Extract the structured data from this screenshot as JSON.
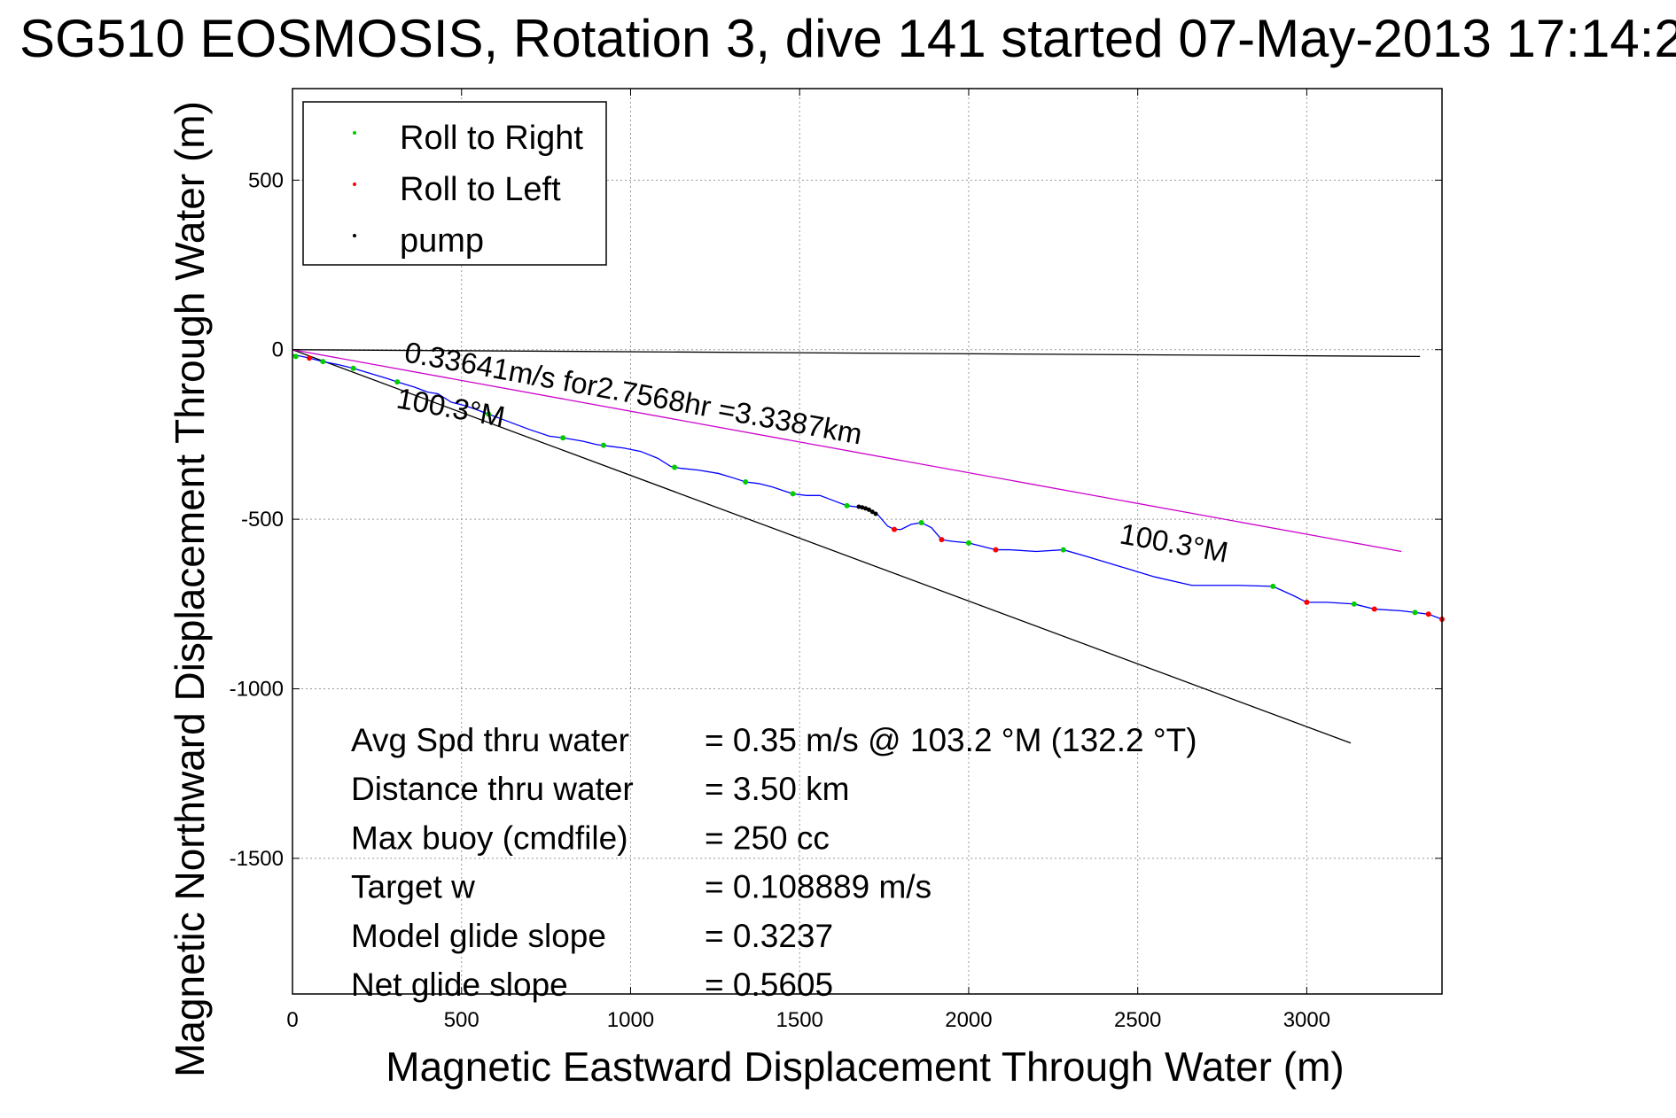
{
  "chart_data": {
    "type": "scatter",
    "title": "SG510 EOSMOSIS, Rotation 3, dive 141 started 07-May-2013 17:14:2",
    "xlabel": "Magnetic Eastward Displacement Through Water (m)",
    "ylabel": "Magnetic Northward Displacement Through Water (m)",
    "xlim": [
      0,
      3400
    ],
    "ylim": [
      -1900,
      770
    ],
    "xticks": [
      0,
      500,
      1000,
      1500,
      2000,
      2500,
      3000
    ],
    "yticks": [
      500,
      0,
      -500,
      -1000,
      -1500
    ],
    "grid": true,
    "legend": {
      "position": "top-left",
      "entries": [
        {
          "label": "Roll to Right",
          "color": "#00cc00"
        },
        {
          "label": "Roll to Left",
          "color": "#ff0000"
        },
        {
          "label": "pump",
          "color": "#000000"
        }
      ]
    },
    "track": {
      "color": "#0000ff",
      "points": [
        [
          0,
          -15
        ],
        [
          20,
          -18
        ],
        [
          50,
          -25
        ],
        [
          90,
          -35
        ],
        [
          140,
          -45
        ],
        [
          180,
          -55
        ],
        [
          230,
          -70
        ],
        [
          280,
          -85
        ],
        [
          310,
          -95
        ],
        [
          360,
          -110
        ],
        [
          400,
          -125
        ],
        [
          430,
          -130
        ],
        [
          470,
          -155
        ],
        [
          510,
          -165
        ],
        [
          540,
          -175
        ],
        [
          580,
          -190
        ],
        [
          620,
          -205
        ],
        [
          660,
          -220
        ],
        [
          700,
          -235
        ],
        [
          760,
          -255
        ],
        [
          800,
          -260
        ],
        [
          830,
          -265
        ],
        [
          860,
          -270
        ],
        [
          900,
          -280
        ],
        [
          940,
          -285
        ],
        [
          980,
          -290
        ],
        [
          1030,
          -300
        ],
        [
          1080,
          -320
        ],
        [
          1120,
          -345
        ],
        [
          1150,
          -350
        ],
        [
          1200,
          -355
        ],
        [
          1260,
          -365
        ],
        [
          1310,
          -380
        ],
        [
          1340,
          -390
        ],
        [
          1380,
          -395
        ],
        [
          1420,
          -405
        ],
        [
          1480,
          -425
        ],
        [
          1520,
          -430
        ],
        [
          1560,
          -430
        ],
        [
          1600,
          -445
        ],
        [
          1640,
          -460
        ],
        [
          1680,
          -465
        ],
        [
          1700,
          -470
        ],
        [
          1730,
          -485
        ],
        [
          1760,
          -520
        ],
        [
          1780,
          -530
        ],
        [
          1800,
          -530
        ],
        [
          1830,
          -515
        ],
        [
          1860,
          -510
        ],
        [
          1890,
          -525
        ],
        [
          1920,
          -560
        ],
        [
          1950,
          -565
        ],
        [
          2000,
          -570
        ],
        [
          2040,
          -580
        ],
        [
          2080,
          -590
        ],
        [
          2120,
          -590
        ],
        [
          2200,
          -595
        ],
        [
          2280,
          -590
        ],
        [
          2350,
          -610
        ],
        [
          2450,
          -640
        ],
        [
          2550,
          -670
        ],
        [
          2660,
          -695
        ],
        [
          2800,
          -695
        ],
        [
          2900,
          -698
        ],
        [
          2960,
          -725
        ],
        [
          3000,
          -745
        ],
        [
          3060,
          -745
        ],
        [
          3140,
          -750
        ],
        [
          3200,
          -765
        ],
        [
          3280,
          -770
        ],
        [
          3320,
          -775
        ],
        [
          3360,
          -780
        ],
        [
          3400,
          -795
        ]
      ]
    },
    "roll_right_points": [
      [
        10,
        -20
      ],
      [
        90,
        -35
      ],
      [
        180,
        -55
      ],
      [
        310,
        -95
      ],
      [
        580,
        -190
      ],
      [
        800,
        -260
      ],
      [
        920,
        -282
      ],
      [
        1130,
        -347
      ],
      [
        1340,
        -390
      ],
      [
        1480,
        -425
      ],
      [
        1640,
        -460
      ],
      [
        1860,
        -510
      ],
      [
        2000,
        -570
      ],
      [
        2280,
        -590
      ],
      [
        2900,
        -698
      ],
      [
        3140,
        -750
      ],
      [
        3320,
        -775
      ]
    ],
    "roll_left_points": [
      [
        50,
        -25
      ],
      [
        1780,
        -530
      ],
      [
        1920,
        -560
      ],
      [
        2080,
        -590
      ],
      [
        3000,
        -745
      ],
      [
        3200,
        -765
      ],
      [
        3360,
        -780
      ],
      [
        3400,
        -795
      ]
    ],
    "pump_points": [
      [
        1675,
        -463
      ],
      [
        1685,
        -465
      ],
      [
        1695,
        -468
      ],
      [
        1705,
        -472
      ],
      [
        1715,
        -478
      ],
      [
        1725,
        -484
      ]
    ],
    "reference_lines": [
      {
        "name": "black-horizontal",
        "color": "#000000",
        "points": [
          [
            0,
            0
          ],
          [
            3335,
            -20
          ]
        ]
      },
      {
        "name": "black-diagonal",
        "color": "#000000",
        "points": [
          [
            0,
            0
          ],
          [
            3130,
            -1160
          ]
        ]
      },
      {
        "name": "magenta-net",
        "color": "#cc00cc",
        "points": [
          [
            0,
            0
          ],
          [
            3280,
            -595
          ]
        ]
      }
    ],
    "annotations": {
      "speed_label": "0.33641m/s for2.7568hr =3.3387km",
      "heading_label_1": "100.3°M",
      "heading_label_2": "100.3°M"
    },
    "stats": [
      {
        "label": "Avg Spd thru water",
        "value": "=  0.35 m/s @ 103.2 °M (132.2 °T)"
      },
      {
        "label": "Distance thru water",
        "value": "=  3.50 km"
      },
      {
        "label": "Max buoy (cmdfile)",
        "value": "= 250 cc"
      },
      {
        "label": "Target w",
        "value": "= 0.108889 m/s"
      },
      {
        "label": "Model glide slope",
        "value": "= 0.3237"
      },
      {
        "label": "Net glide slope",
        "value": "= 0.5605"
      }
    ]
  }
}
